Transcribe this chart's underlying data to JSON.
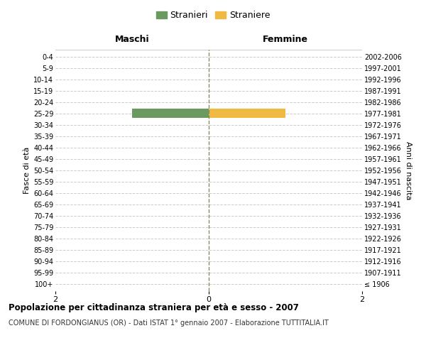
{
  "age_groups": [
    "100+",
    "95-99",
    "90-94",
    "85-89",
    "80-84",
    "75-79",
    "70-74",
    "65-69",
    "60-64",
    "55-59",
    "50-54",
    "45-49",
    "40-44",
    "35-39",
    "30-34",
    "25-29",
    "20-24",
    "15-19",
    "10-14",
    "5-9",
    "0-4"
  ],
  "birth_years": [
    "≤ 1906",
    "1907-1911",
    "1912-1916",
    "1917-1921",
    "1922-1926",
    "1927-1931",
    "1932-1936",
    "1937-1941",
    "1942-1946",
    "1947-1951",
    "1952-1956",
    "1957-1961",
    "1962-1966",
    "1967-1971",
    "1972-1976",
    "1977-1981",
    "1982-1986",
    "1987-1991",
    "1992-1996",
    "1997-2001",
    "2002-2006"
  ],
  "males": [
    0,
    0,
    0,
    0,
    0,
    0,
    0,
    0,
    0,
    0,
    0,
    0,
    0,
    0,
    0,
    1,
    0,
    0,
    0,
    0,
    0
  ],
  "females": [
    0,
    0,
    0,
    0,
    0,
    0,
    0,
    0,
    0,
    0,
    0,
    0,
    0,
    0,
    0,
    1,
    0,
    0,
    0,
    0,
    0
  ],
  "male_color": "#6a9a5f",
  "female_color": "#f0b942",
  "title_main": "Popolazione per cittadinanza straniera per età e sesso - 2007",
  "title_sub": "COMUNE DI FORDONGIANUS (OR) - Dati ISTAT 1° gennaio 2007 - Elaborazione TUTTITALIA.IT",
  "legend_male": "Stranieri",
  "legend_female": "Straniere",
  "xlabel_left": "Maschi",
  "xlabel_right": "Femmine",
  "ylabel_left": "Fasce di età",
  "ylabel_right": "Anni di nascita",
  "xlim": [
    -2,
    2
  ],
  "xticks": [
    -2,
    0,
    2
  ],
  "background_color": "#ffffff",
  "grid_color": "#cccccc",
  "center_line_color": "#8b8b60"
}
